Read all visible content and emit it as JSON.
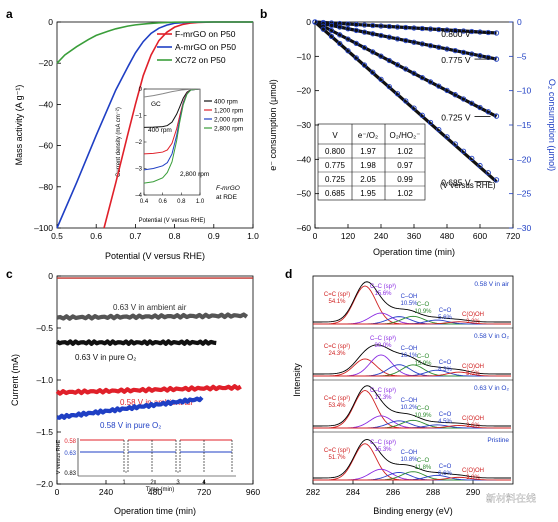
{
  "chart_data": [
    {
      "panel": "a",
      "type": "line",
      "xlabel": "Potential (V versus RHE)",
      "ylabel": "Mass activity (A g⁻¹)",
      "xlim": [
        0.5,
        1.0
      ],
      "ylim": [
        -100,
        0
      ],
      "xticks": [
        "0.5",
        "0.6",
        "0.7",
        "0.8",
        "0.9",
        "1.0"
      ],
      "yticks": [
        "0",
        "–20",
        "–40",
        "–60",
        "–80",
        "–100"
      ],
      "legend_position": "top-right",
      "series": [
        {
          "name": "F-mrGO on P50",
          "color": "#e0202a",
          "x": [
            0.62,
            0.65,
            0.68,
            0.7,
            0.72,
            0.74,
            0.76,
            0.78,
            0.8,
            0.82,
            0.84,
            0.86,
            0.9,
            0.95,
            1.0
          ],
          "y": [
            -100,
            -78,
            -55,
            -40,
            -26,
            -16,
            -9,
            -5,
            -2.5,
            -1.2,
            -0.5,
            -0.2,
            0,
            0,
            0
          ]
        },
        {
          "name": "A-mrGO on P50",
          "color": "#1f3fc4",
          "x": [
            0.5,
            0.55,
            0.6,
            0.65,
            0.68,
            0.7,
            0.72,
            0.74,
            0.76,
            0.78,
            0.8,
            0.84,
            0.9,
            1.0
          ],
          "y": [
            -100,
            -78,
            -55,
            -33,
            -22,
            -15,
            -9.5,
            -5.5,
            -3,
            -1.5,
            -0.6,
            -0.1,
            0,
            0
          ]
        },
        {
          "name": "XC72 on P50",
          "color": "#3a9e3a",
          "x": [
            0.5,
            0.52,
            0.55,
            0.58,
            0.6,
            0.63,
            0.65,
            0.68,
            0.7,
            0.73,
            0.76,
            0.8,
            0.85,
            0.9,
            1.0
          ],
          "y": [
            -20,
            -16,
            -12,
            -8.5,
            -6.5,
            -4.5,
            -3.3,
            -2,
            -1.4,
            -0.8,
            -0.4,
            -0.1,
            0,
            0,
            0
          ]
        }
      ],
      "inset": {
        "xlabel": "Potential (V versus RHE)",
        "ylabel": "Current density (mA cm⁻²)",
        "xlim": [
          0.4,
          1.0
        ],
        "ylim": [
          -4,
          0
        ],
        "xticks": [
          "0.4",
          "0.6",
          "0.8",
          "1.0"
        ],
        "yticks": [
          "0",
          "–1",
          "–2",
          "–3",
          "–4"
        ],
        "annotations": [
          "GC",
          "400 rpm",
          "2,800 rpm",
          "F-mrGO",
          "at RDE"
        ],
        "series": [
          {
            "name": "400 rpm",
            "color": "#111111",
            "x": [
              0.4,
              0.5,
              0.6,
              0.65,
              0.7,
              0.75,
              0.78,
              0.82,
              0.86,
              0.9,
              1.0
            ],
            "y": [
              -1.45,
              -1.44,
              -1.42,
              -1.38,
              -1.25,
              -0.95,
              -0.7,
              -0.35,
              -0.12,
              -0.03,
              0
            ]
          },
          {
            "name": "1,200 rpm",
            "color": "#e0202a",
            "x": [
              0.4,
              0.5,
              0.6,
              0.65,
              0.7,
              0.75,
              0.78,
              0.82,
              0.86,
              0.9,
              1.0
            ],
            "y": [
              -2.45,
              -2.43,
              -2.38,
              -2.3,
              -2.05,
              -1.5,
              -1.05,
              -0.5,
              -0.16,
              -0.04,
              0
            ]
          },
          {
            "name": "2,000 rpm",
            "color": "#1f3fc4",
            "x": [
              0.4,
              0.5,
              0.6,
              0.65,
              0.7,
              0.75,
              0.78,
              0.82,
              0.86,
              0.9,
              1.0
            ],
            "y": [
              -3.05,
              -3.0,
              -2.9,
              -2.78,
              -2.45,
              -1.75,
              -1.2,
              -0.55,
              -0.18,
              -0.04,
              0
            ]
          },
          {
            "name": "2,800 rpm",
            "color": "#3a9e3a",
            "x": [
              0.4,
              0.5,
              0.6,
              0.65,
              0.7,
              0.75,
              0.78,
              0.82,
              0.86,
              0.9,
              1.0
            ],
            "y": [
              -3.55,
              -3.5,
              -3.35,
              -3.15,
              -2.75,
              -1.95,
              -1.3,
              -0.6,
              -0.2,
              -0.04,
              0
            ]
          },
          {
            "name": "GC",
            "color": "#888888",
            "x": [
              0.4,
              0.5,
              0.6,
              0.7,
              0.8,
              0.9,
              1.0
            ],
            "y": [
              -0.3,
              -0.25,
              -0.18,
              -0.1,
              -0.04,
              -0.01,
              0
            ]
          }
        ]
      }
    },
    {
      "panel": "b",
      "type": "scatter",
      "xlabel": "Operation time (min)",
      "ylabel": "e⁻ consumption (μmol)",
      "y2label": "O₂ consumption (μmol)",
      "xlim": [
        0,
        720
      ],
      "ylim": [
        -60,
        0
      ],
      "y2lim": [
        -30,
        0
      ],
      "xticks": [
        "0",
        "120",
        "240",
        "360",
        "480",
        "600",
        "720"
      ],
      "yticks": [
        "0",
        "–10",
        "–20",
        "–30",
        "–40",
        "–50",
        "–60"
      ],
      "y2ticks": [
        "0",
        "–5",
        "–10",
        "–15",
        "–20",
        "–25",
        "–30"
      ],
      "series": [
        {
          "name": "0.800 V",
          "end_e": -3.2,
          "end_o2": -1.6
        },
        {
          "name": "0.775 V",
          "end_e": -10.8,
          "end_o2": -5.4
        },
        {
          "name": "0.725 V",
          "end_e": -27.5,
          "end_o2": -13.7
        },
        {
          "name": "0.685 V",
          "end_e": -46.5,
          "end_o2": -23.0
        }
      ],
      "table": {
        "headers": [
          "V",
          "e⁻/O₂",
          "O₂/HO₂⁻"
        ],
        "rows": [
          [
            "0.800",
            "1.97",
            "1.02"
          ],
          [
            "0.775",
            "1.98",
            "0.97"
          ],
          [
            "0.725",
            "2.05",
            "0.99"
          ],
          [
            "0.685",
            "1.95",
            "1.02"
          ]
        ],
        "note": "(V versus RHE)"
      }
    },
    {
      "panel": "c",
      "type": "line",
      "xlabel": "Operation time (min)",
      "ylabel": "Current (mA)",
      "xlim": [
        0,
        960
      ],
      "ylim": [
        -2.0,
        0
      ],
      "xticks": [
        "0",
        "240",
        "480",
        "720",
        "960"
      ],
      "yticks": [
        "0",
        "–0.5",
        "–1.0",
        "–1.5",
        "–2.0"
      ],
      "series": [
        {
          "name": "0.63 V in ambient air",
          "color": "#555555",
          "level": -0.4
        },
        {
          "name": "0.63 V in pure O₂",
          "color": "#111111",
          "level": -0.64
        },
        {
          "name": "0.58 V in ambient air",
          "color": "#e0202a",
          "level": -1.12
        },
        {
          "name": "0.58 V in pure O₂",
          "color": "#1f3fc4",
          "level": -1.36
        }
      ],
      "baseline_color": "#c0302a",
      "inset": {
        "xlabel": "Time (min)",
        "ylabel": "V versus RHE",
        "yticks": [
          "0.58",
          "0.63",
          "0.83"
        ],
        "xticks": [
          "1",
          "2",
          "3",
          "4"
        ]
      }
    },
    {
      "panel": "d",
      "type": "line",
      "xlabel": "Binding energy (eV)",
      "ylabel": "Intensity",
      "xlim": [
        282,
        292
      ],
      "xticks": [
        "282",
        "284",
        "286",
        "288",
        "290"
      ],
      "spectra": [
        {
          "condition": "0.58 V in air",
          "peaks": [
            [
              "C=C (sp²)",
              "54.1%"
            ],
            [
              "C–C (sp³)",
              "15.6%"
            ],
            [
              "C–OH",
              "10.5%"
            ],
            [
              "C–O",
              "10.9%"
            ],
            [
              "C=O",
              "5.6%"
            ],
            [
              "C(O)OH",
              "3.2%"
            ]
          ]
        },
        {
          "condition": "0.58 V in O₂",
          "peaks": [
            [
              "C=C (sp²)",
              "24.3%"
            ],
            [
              "C–C (sp³)",
              "30.0%"
            ],
            [
              "C–OH",
              "16.1%"
            ],
            [
              "C–O",
              "15.9%"
            ],
            [
              "C=O",
              "8.3%"
            ],
            [
              "C(O)OH",
              "5.5%"
            ]
          ]
        },
        {
          "condition": "0.63 V in O₂",
          "peaks": [
            [
              "C=C (sp²)",
              "53.4%"
            ],
            [
              "C–C (sp³)",
              "17.3%"
            ],
            [
              "C–OH",
              "10.2%"
            ],
            [
              "C–O",
              "10.9%"
            ],
            [
              "C=O",
              "4.5%"
            ],
            [
              "C(O)OH",
              "3.6%"
            ]
          ]
        },
        {
          "condition": "Pristine",
          "peaks": [
            [
              "C=C (sp²)",
              "51.7%"
            ],
            [
              "C–C (sp³)",
              "15.3%"
            ],
            [
              "C–OH",
              "10.8%"
            ],
            [
              "C–O",
              "11.8%"
            ],
            [
              "C=O",
              "6.6%"
            ],
            [
              "C(O)OH",
              "3.8%"
            ]
          ]
        }
      ],
      "peak_colors": [
        "#d02020",
        "#8a2be2",
        "#2a40c8",
        "#2e8b2e",
        "#2a40c8",
        "#d02020"
      ]
    }
  ],
  "panel_labels": [
    "a",
    "b",
    "c",
    "d"
  ],
  "watermark": "新材料在线"
}
